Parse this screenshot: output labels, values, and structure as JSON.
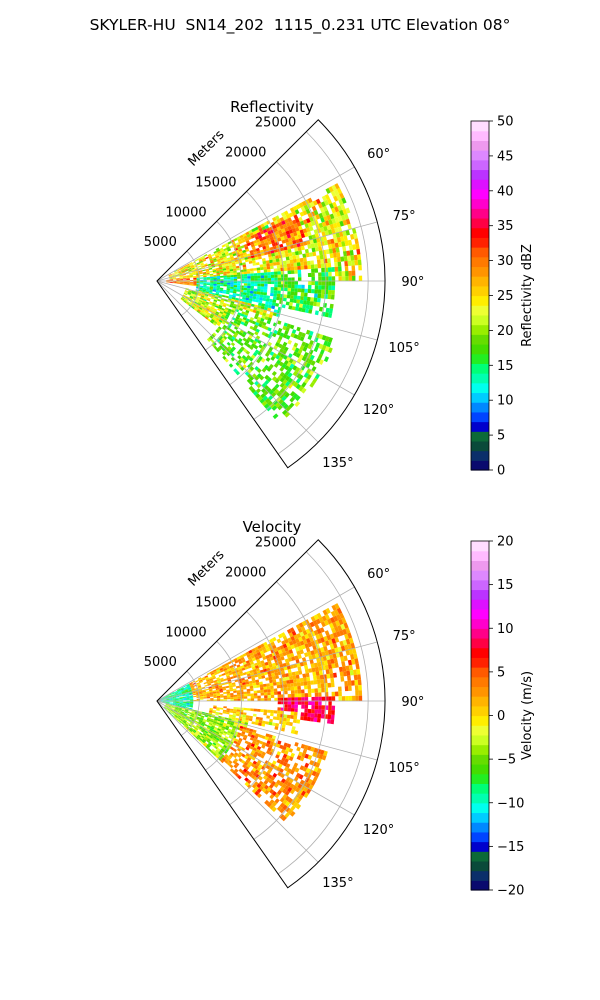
{
  "figure": {
    "title": "SKYLER-HU  SN14_202  1115_0.231 UTC Elevation 08°"
  },
  "chart_data": [
    {
      "type": "heatmap",
      "subtype": "polar-sector (radar PPI)",
      "title": "Reflectivity",
      "radial_axis_label": "Meters",
      "radial_ticks": [
        5000,
        10000,
        15000,
        20000,
        25000
      ],
      "radial_tick_labels": [
        "5000",
        "10000",
        "15000",
        "20000",
        "25000"
      ],
      "rmax": 27000,
      "angle_range_deg": [
        45,
        145
      ],
      "angle_ticks": [
        60,
        75,
        90,
        105,
        120,
        135
      ],
      "angle_tick_labels": [
        "60°",
        "75°",
        "90°",
        "105°",
        "120°",
        "135°"
      ],
      "grid": true,
      "colorbar": {
        "label": "Reflectivity dBZ",
        "vmin": 0,
        "vmax": 50,
        "ticks": [
          0,
          5,
          10,
          15,
          20,
          25,
          30,
          35,
          40,
          45,
          50
        ],
        "tick_labels": [
          "0",
          "5",
          "10",
          "15",
          "20",
          "25",
          "30",
          "35",
          "40",
          "45",
          "50"
        ],
        "colors": [
          "#0a0a6e",
          "#0b2f6a",
          "#0a4a3a",
          "#0c6a38",
          "#0000cc",
          "#0044ff",
          "#0088ff",
          "#00ccff",
          "#00ffee",
          "#00ffb0",
          "#00ff77",
          "#22ee22",
          "#44dd00",
          "#66dd00",
          "#99ee00",
          "#ccff22",
          "#eeff33",
          "#ffee00",
          "#ffd000",
          "#ffb400",
          "#ff9400",
          "#ff7a00",
          "#ff5a00",
          "#ff2200",
          "#ff0000",
          "#ff0044",
          "#ff0088",
          "#ff00cc",
          "#ff00ff",
          "#dd11ff",
          "#bb33ff",
          "#cc66ff",
          "#dd88ff",
          "#ee99ee",
          "#ffbbff",
          "#ffddff"
        ]
      },
      "regions": [
        {
          "az": [
            61,
            90
          ],
          "range": [
            1500,
            24000
          ],
          "value": 24,
          "spread": 6,
          "density": 0.8
        },
        {
          "az": [
            64,
            76
          ],
          "range": [
            11000,
            18000
          ],
          "value": 30,
          "spread": 5,
          "density": 0.85
        },
        {
          "az": [
            84,
            98
          ],
          "range": [
            1000,
            4500
          ],
          "value": 29,
          "spread": 5,
          "density": 0.9
        },
        {
          "az": [
            86,
            106
          ],
          "range": [
            4500,
            15000
          ],
          "value": 14,
          "spread": 4,
          "density": 0.85
        },
        {
          "az": [
            85,
            102
          ],
          "range": [
            14000,
            21000
          ],
          "value": 17,
          "spread": 5,
          "density": 0.75
        },
        {
          "az": [
            104,
            127
          ],
          "range": [
            3500,
            14000
          ],
          "value": 22,
          "spread": 5,
          "density": 0.85
        },
        {
          "az": [
            108,
            140
          ],
          "range": [
            9000,
            22000
          ],
          "value": 18,
          "spread": 4,
          "density": 0.55
        }
      ]
    },
    {
      "type": "heatmap",
      "subtype": "polar-sector (radar PPI)",
      "title": "Velocity",
      "radial_axis_label": "Meters",
      "radial_ticks": [
        5000,
        10000,
        15000,
        20000,
        25000
      ],
      "radial_tick_labels": [
        "5000",
        "10000",
        "15000",
        "20000",
        "25000"
      ],
      "rmax": 27000,
      "angle_range_deg": [
        45,
        145
      ],
      "angle_ticks": [
        60,
        75,
        90,
        105,
        120,
        135
      ],
      "angle_tick_labels": [
        "60°",
        "75°",
        "90°",
        "105°",
        "120°",
        "135°"
      ],
      "grid": true,
      "colorbar": {
        "label": "Velocity (m/s)",
        "vmin": -20,
        "vmax": 20,
        "ticks": [
          -20,
          -15,
          -10,
          -5,
          0,
          5,
          10,
          15,
          20
        ],
        "tick_labels": [
          "−20",
          "−15",
          "−10",
          "−5",
          "0",
          "5",
          "10",
          "15",
          "20"
        ],
        "colors": [
          "#0a0a6e",
          "#0b2f6a",
          "#0a4a3a",
          "#0c6a38",
          "#0000cc",
          "#0044ff",
          "#0088ff",
          "#00ccff",
          "#00ffee",
          "#00ffb0",
          "#00ff77",
          "#22ee22",
          "#44dd00",
          "#66dd00",
          "#99ee00",
          "#ccff22",
          "#eeff33",
          "#ffee00",
          "#ffd000",
          "#ffb400",
          "#ff9400",
          "#ff7a00",
          "#ff5a00",
          "#ff2200",
          "#ff0000",
          "#ff0044",
          "#ff0088",
          "#ff00cc",
          "#ff00ff",
          "#dd11ff",
          "#bb33ff",
          "#cc66ff",
          "#dd88ff",
          "#ee99ee",
          "#ffbbff",
          "#ffddff"
        ]
      },
      "regions": [
        {
          "az": [
            62,
            104
          ],
          "range": [
            300,
            4000
          ],
          "value": -9,
          "spread": 3,
          "density": 0.9
        },
        {
          "az": [
            104,
            134
          ],
          "range": [
            800,
            11000
          ],
          "value": -4,
          "spread": 3,
          "density": 0.9
        },
        {
          "az": [
            61,
            90
          ],
          "range": [
            4000,
            24000
          ],
          "value": 2,
          "spread": 3,
          "density": 0.82
        },
        {
          "az": [
            88,
            98
          ],
          "range": [
            14000,
            21000
          ],
          "value": 8,
          "spread": 3,
          "density": 0.85
        },
        {
          "az": [
            94,
            104
          ],
          "range": [
            6000,
            17000
          ],
          "value": 1,
          "spread": 3,
          "density": 0.6
        },
        {
          "az": [
            106,
            134
          ],
          "range": [
            10000,
            21000
          ],
          "value": 3,
          "spread": 3,
          "density": 0.65
        }
      ]
    }
  ]
}
